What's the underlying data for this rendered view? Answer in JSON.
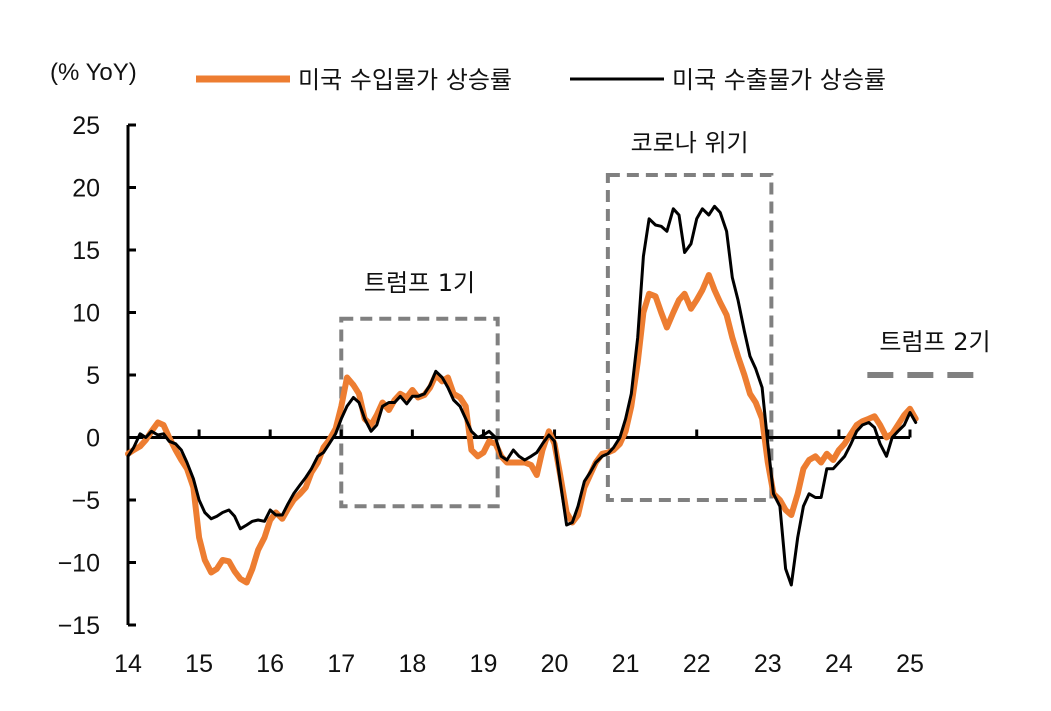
{
  "chart_data": {
    "type": "line",
    "y_unit": "(% YoY)",
    "ylim": [
      -15,
      25
    ],
    "y_ticks": [
      25,
      20,
      15,
      10,
      5,
      0,
      -5,
      -10,
      -15
    ],
    "x_ticks": [
      "14",
      "15",
      "16",
      "17",
      "18",
      "19",
      "20",
      "21",
      "22",
      "23",
      "24",
      "25"
    ],
    "xlim": [
      14,
      25
    ],
    "grid": false,
    "legend_position": "top",
    "series": [
      {
        "name": "미국 수입물가 상승률",
        "color": "#ED7D31",
        "points": [
          [
            14.0,
            -1.3
          ],
          [
            14.08,
            -1.0
          ],
          [
            14.17,
            -0.7
          ],
          [
            14.25,
            -0.2
          ],
          [
            14.33,
            0.5
          ],
          [
            14.42,
            1.2
          ],
          [
            14.5,
            1.0
          ],
          [
            14.58,
            0.0
          ],
          [
            14.67,
            -1.0
          ],
          [
            14.75,
            -1.8
          ],
          [
            14.83,
            -2.5
          ],
          [
            14.92,
            -4.0
          ],
          [
            15.0,
            -8.0
          ],
          [
            15.08,
            -9.8
          ],
          [
            15.17,
            -10.8
          ],
          [
            15.25,
            -10.5
          ],
          [
            15.33,
            -9.8
          ],
          [
            15.42,
            -9.9
          ],
          [
            15.5,
            -10.7
          ],
          [
            15.58,
            -11.3
          ],
          [
            15.67,
            -11.6
          ],
          [
            15.75,
            -10.5
          ],
          [
            15.83,
            -9.0
          ],
          [
            15.92,
            -8.0
          ],
          [
            16.0,
            -6.6
          ],
          [
            16.08,
            -6.0
          ],
          [
            16.17,
            -6.5
          ],
          [
            16.25,
            -5.7
          ],
          [
            16.33,
            -5.0
          ],
          [
            16.42,
            -4.5
          ],
          [
            16.5,
            -4.0
          ],
          [
            16.58,
            -2.8
          ],
          [
            16.67,
            -2.0
          ],
          [
            16.75,
            -0.8
          ],
          [
            16.83,
            -0.2
          ],
          [
            16.92,
            0.7
          ],
          [
            17.0,
            2.5
          ],
          [
            17.08,
            4.8
          ],
          [
            17.17,
            4.2
          ],
          [
            17.25,
            3.5
          ],
          [
            17.33,
            1.5
          ],
          [
            17.42,
            1.0
          ],
          [
            17.5,
            1.8
          ],
          [
            17.58,
            2.8
          ],
          [
            17.67,
            2.2
          ],
          [
            17.75,
            3.0
          ],
          [
            17.83,
            3.5
          ],
          [
            17.92,
            3.2
          ],
          [
            18.0,
            3.8
          ],
          [
            18.08,
            3.2
          ],
          [
            18.17,
            3.4
          ],
          [
            18.25,
            4.0
          ],
          [
            18.33,
            5.0
          ],
          [
            18.42,
            4.5
          ],
          [
            18.5,
            4.8
          ],
          [
            18.58,
            3.5
          ],
          [
            18.67,
            3.2
          ],
          [
            18.75,
            2.5
          ],
          [
            18.83,
            -1.0
          ],
          [
            18.92,
            -1.5
          ],
          [
            19.0,
            -1.2
          ],
          [
            19.08,
            -0.3
          ],
          [
            19.17,
            -0.5
          ],
          [
            19.25,
            -1.5
          ],
          [
            19.33,
            -2.0
          ],
          [
            19.42,
            -2.0
          ],
          [
            19.5,
            -2.0
          ],
          [
            19.58,
            -2.0
          ],
          [
            19.67,
            -2.2
          ],
          [
            19.75,
            -3.0
          ],
          [
            19.83,
            -1.0
          ],
          [
            19.92,
            0.5
          ],
          [
            20.0,
            -0.5
          ],
          [
            20.08,
            -3.0
          ],
          [
            20.17,
            -6.0
          ],
          [
            20.25,
            -6.8
          ],
          [
            20.33,
            -6.2
          ],
          [
            20.42,
            -4.0
          ],
          [
            20.5,
            -3.0
          ],
          [
            20.58,
            -2.0
          ],
          [
            20.67,
            -1.3
          ],
          [
            20.75,
            -1.2
          ],
          [
            20.83,
            -1.0
          ],
          [
            20.92,
            -0.5
          ],
          [
            21.0,
            0.5
          ],
          [
            21.08,
            2.5
          ],
          [
            21.17,
            6.0
          ],
          [
            21.25,
            10.0
          ],
          [
            21.33,
            11.5
          ],
          [
            21.42,
            11.3
          ],
          [
            21.5,
            10.0
          ],
          [
            21.58,
            8.8
          ],
          [
            21.67,
            10.0
          ],
          [
            21.75,
            11.0
          ],
          [
            21.83,
            11.5
          ],
          [
            21.92,
            10.3
          ],
          [
            22.0,
            11.0
          ],
          [
            22.08,
            11.8
          ],
          [
            22.17,
            13.0
          ],
          [
            22.25,
            11.8
          ],
          [
            22.33,
            10.8
          ],
          [
            22.42,
            9.8
          ],
          [
            22.5,
            8.0
          ],
          [
            22.58,
            6.5
          ],
          [
            22.67,
            5.0
          ],
          [
            22.75,
            3.5
          ],
          [
            22.83,
            2.8
          ],
          [
            22.92,
            1.5
          ],
          [
            23.0,
            -2.0
          ],
          [
            23.08,
            -4.5
          ],
          [
            23.17,
            -5.0
          ],
          [
            23.25,
            -5.8
          ],
          [
            23.33,
            -6.2
          ],
          [
            23.42,
            -4.5
          ],
          [
            23.5,
            -2.5
          ],
          [
            23.58,
            -1.8
          ],
          [
            23.67,
            -1.5
          ],
          [
            23.75,
            -2.0
          ],
          [
            23.83,
            -1.3
          ],
          [
            23.92,
            -1.8
          ],
          [
            24.0,
            -1.0
          ],
          [
            24.08,
            -0.5
          ],
          [
            24.17,
            0.3
          ],
          [
            24.25,
            1.0
          ],
          [
            24.33,
            1.3
          ],
          [
            24.42,
            1.5
          ],
          [
            24.5,
            1.7
          ],
          [
            24.58,
            1.0
          ],
          [
            24.67,
            0.0
          ],
          [
            24.75,
            0.3
          ],
          [
            24.83,
            1.0
          ],
          [
            24.92,
            1.8
          ],
          [
            25.0,
            2.3
          ],
          [
            25.08,
            1.5
          ]
        ]
      },
      {
        "name": "미국 수출물가 상승률",
        "color": "#000000",
        "points": [
          [
            14.0,
            -1.5
          ],
          [
            14.08,
            -0.8
          ],
          [
            14.17,
            0.3
          ],
          [
            14.25,
            0.0
          ],
          [
            14.33,
            0.5
          ],
          [
            14.42,
            0.2
          ],
          [
            14.5,
            0.3
          ],
          [
            14.58,
            -0.3
          ],
          [
            14.67,
            -0.5
          ],
          [
            14.75,
            -1.0
          ],
          [
            14.83,
            -2.0
          ],
          [
            14.92,
            -3.3
          ],
          [
            15.0,
            -5.0
          ],
          [
            15.08,
            -6.0
          ],
          [
            15.17,
            -6.5
          ],
          [
            15.25,
            -6.3
          ],
          [
            15.33,
            -6.0
          ],
          [
            15.42,
            -5.8
          ],
          [
            15.5,
            -6.3
          ],
          [
            15.58,
            -7.3
          ],
          [
            15.67,
            -7.0
          ],
          [
            15.75,
            -6.7
          ],
          [
            15.83,
            -6.6
          ],
          [
            15.92,
            -6.7
          ],
          [
            16.0,
            -5.8
          ],
          [
            16.08,
            -6.2
          ],
          [
            16.17,
            -6.2
          ],
          [
            16.25,
            -5.3
          ],
          [
            16.33,
            -4.5
          ],
          [
            16.42,
            -3.8
          ],
          [
            16.5,
            -3.2
          ],
          [
            16.58,
            -2.5
          ],
          [
            16.67,
            -1.5
          ],
          [
            16.75,
            -1.2
          ],
          [
            16.83,
            -0.5
          ],
          [
            16.92,
            0.3
          ],
          [
            17.0,
            1.5
          ],
          [
            17.08,
            2.5
          ],
          [
            17.17,
            3.2
          ],
          [
            17.25,
            2.8
          ],
          [
            17.33,
            1.5
          ],
          [
            17.42,
            0.5
          ],
          [
            17.5,
            1.0
          ],
          [
            17.58,
            2.5
          ],
          [
            17.67,
            2.8
          ],
          [
            17.75,
            2.8
          ],
          [
            17.83,
            3.3
          ],
          [
            17.92,
            2.7
          ],
          [
            18.0,
            3.3
          ],
          [
            18.08,
            3.3
          ],
          [
            18.17,
            3.5
          ],
          [
            18.25,
            4.2
          ],
          [
            18.33,
            5.3
          ],
          [
            18.42,
            4.8
          ],
          [
            18.5,
            4.0
          ],
          [
            18.58,
            3.0
          ],
          [
            18.67,
            2.5
          ],
          [
            18.75,
            1.5
          ],
          [
            18.83,
            0.5
          ],
          [
            18.92,
            0.0
          ],
          [
            19.0,
            0.2
          ],
          [
            19.08,
            0.5
          ],
          [
            19.17,
            0.0
          ],
          [
            19.25,
            -1.5
          ],
          [
            19.33,
            -1.8
          ],
          [
            19.42,
            -1.0
          ],
          [
            19.5,
            -1.5
          ],
          [
            19.58,
            -1.8
          ],
          [
            19.67,
            -1.5
          ],
          [
            19.75,
            -1.2
          ],
          [
            19.83,
            -0.5
          ],
          [
            19.92,
            0.2
          ],
          [
            20.0,
            -0.3
          ],
          [
            20.08,
            -3.5
          ],
          [
            20.17,
            -7.0
          ],
          [
            20.25,
            -6.8
          ],
          [
            20.33,
            -5.5
          ],
          [
            20.42,
            -3.5
          ],
          [
            20.5,
            -2.8
          ],
          [
            20.58,
            -2.0
          ],
          [
            20.67,
            -1.5
          ],
          [
            20.75,
            -1.3
          ],
          [
            20.83,
            -0.8
          ],
          [
            20.92,
            0.0
          ],
          [
            21.0,
            1.5
          ],
          [
            21.08,
            3.5
          ],
          [
            21.17,
            8.0
          ],
          [
            21.25,
            14.5
          ],
          [
            21.33,
            17.5
          ],
          [
            21.42,
            17.0
          ],
          [
            21.5,
            16.9
          ],
          [
            21.58,
            16.5
          ],
          [
            21.67,
            18.3
          ],
          [
            21.75,
            17.8
          ],
          [
            21.83,
            14.8
          ],
          [
            21.92,
            15.5
          ],
          [
            22.0,
            17.5
          ],
          [
            22.08,
            18.3
          ],
          [
            22.17,
            17.8
          ],
          [
            22.25,
            18.5
          ],
          [
            22.33,
            18.0
          ],
          [
            22.42,
            16.5
          ],
          [
            22.5,
            12.8
          ],
          [
            22.58,
            11.0
          ],
          [
            22.67,
            8.5
          ],
          [
            22.75,
            6.5
          ],
          [
            22.83,
            5.5
          ],
          [
            22.92,
            4.0
          ],
          [
            23.0,
            -0.5
          ],
          [
            23.08,
            -4.5
          ],
          [
            23.17,
            -5.5
          ],
          [
            23.25,
            -10.5
          ],
          [
            23.33,
            -11.8
          ],
          [
            23.42,
            -8.0
          ],
          [
            23.5,
            -5.5
          ],
          [
            23.58,
            -4.5
          ],
          [
            23.67,
            -4.8
          ],
          [
            23.75,
            -4.8
          ],
          [
            23.83,
            -2.5
          ],
          [
            23.92,
            -2.5
          ],
          [
            24.0,
            -2.0
          ],
          [
            24.08,
            -1.5
          ],
          [
            24.17,
            -0.5
          ],
          [
            24.25,
            0.5
          ],
          [
            24.33,
            1.0
          ],
          [
            24.42,
            1.2
          ],
          [
            24.5,
            0.8
          ],
          [
            24.58,
            -0.5
          ],
          [
            24.67,
            -1.5
          ],
          [
            24.75,
            0.0
          ],
          [
            24.83,
            0.5
          ],
          [
            24.92,
            1.0
          ],
          [
            25.0,
            2.0
          ],
          [
            25.08,
            1.2
          ]
        ]
      }
    ],
    "annotations": [
      {
        "label": "트럼프 1기",
        "style": "dashed-box",
        "x_start": 17.0,
        "x_end": 19.2,
        "y_top": 9.5,
        "y_bottom": -5.5
      },
      {
        "label": "코로나 위기",
        "style": "dashed-box",
        "x_start": 20.75,
        "x_end": 23.05,
        "y_top": 21.0,
        "y_bottom": -5.0
      },
      {
        "label": "트럼프 2기",
        "style": "dashed-line",
        "x_start": 24.4,
        "x_end": 25.95,
        "y": 5.0
      }
    ]
  }
}
